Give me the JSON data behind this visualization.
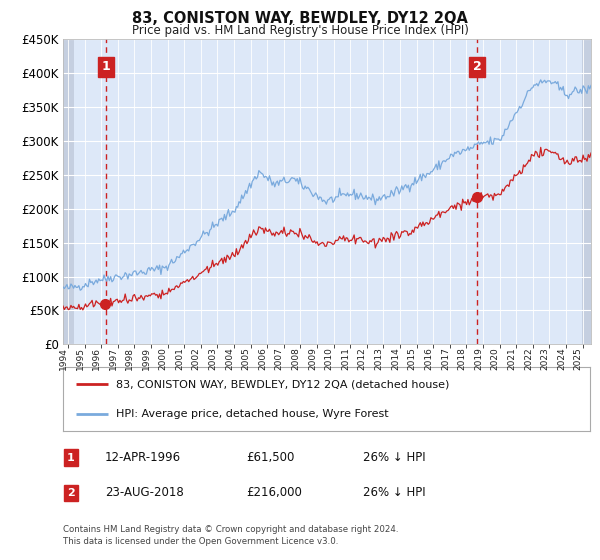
{
  "title": "83, CONISTON WAY, BEWDLEY, DY12 2QA",
  "subtitle": "Price paid vs. HM Land Registry's House Price Index (HPI)",
  "legend_line1": "83, CONISTON WAY, BEWDLEY, DY12 2QA (detached house)",
  "legend_line2": "HPI: Average price, detached house, Wyre Forest",
  "annotation1_label": "1",
  "annotation1_date": "12-APR-1996",
  "annotation1_price": "£61,500",
  "annotation1_note": "26% ↓ HPI",
  "annotation2_label": "2",
  "annotation2_date": "23-AUG-2018",
  "annotation2_price": "£216,000",
  "annotation2_note": "26% ↓ HPI",
  "footer": "Contains HM Land Registry data © Crown copyright and database right 2024.\nThis data is licensed under the Open Government Licence v3.0.",
  "ylim": [
    0,
    450000
  ],
  "yticks": [
    0,
    50000,
    100000,
    150000,
    200000,
    250000,
    300000,
    350000,
    400000,
    450000
  ],
  "ytick_labels": [
    "£0",
    "£50K",
    "£100K",
    "£150K",
    "£200K",
    "£250K",
    "£300K",
    "£350K",
    "£400K",
    "£450K"
  ],
  "hpi_color": "#7aaadd",
  "price_color": "#cc2222",
  "marker_color": "#cc2222",
  "dashed_line_color": "#cc2222",
  "plot_bg_color": "#dde8f8",
  "hatch_color": "#c5cfe0",
  "grid_color": "#ffffff",
  "annotation_box_color": "#cc2222",
  "x_start_year": 1993.7,
  "x_end_year": 2025.5,
  "hatch_left_end": 1994.35,
  "hatch_right_start": 2024.95,
  "sale1_year": 1996.28,
  "sale1_price": 61500,
  "sale2_year": 2018.64,
  "sale2_price": 216000,
  "x_tick_years": [
    1994,
    1995,
    1996,
    1997,
    1998,
    1999,
    2000,
    2001,
    2002,
    2003,
    2004,
    2005,
    2006,
    2007,
    2008,
    2009,
    2010,
    2011,
    2012,
    2013,
    2014,
    2015,
    2016,
    2017,
    2018,
    2019,
    2020,
    2021,
    2022,
    2023,
    2024,
    2025
  ]
}
